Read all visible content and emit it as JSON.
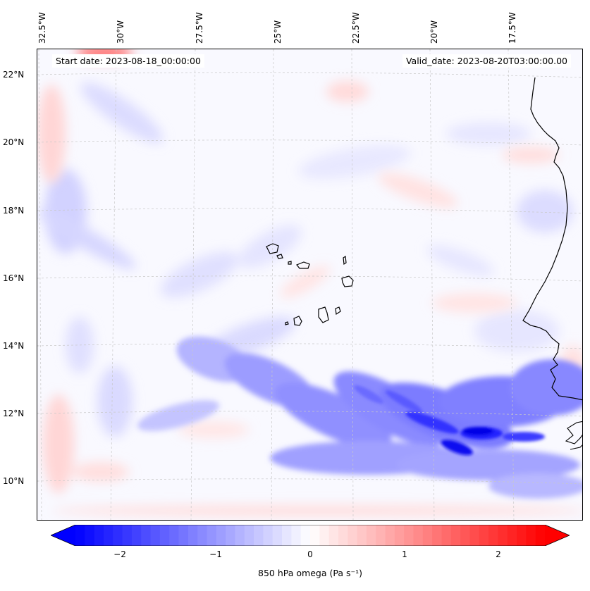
{
  "map": {
    "projection": "Lambert Conformal",
    "extent": {
      "lon_min": -33.0,
      "lon_max": -15.5,
      "lat_min": 8.8,
      "lat_max": 22.7
    },
    "gridlines": "dashed, light grey",
    "coastline_color": "#000000",
    "longitude_labels": [
      "32.5°W",
      "30°W",
      "27.5°W",
      "25°W",
      "22.5°W",
      "20°W",
      "17.5°W"
    ],
    "latitude_labels": [
      "22°N",
      "20°N",
      "18°N",
      "16°N",
      "14°N",
      "12°N",
      "10°N"
    ],
    "start_date_text": "Start date: 2023-08-18_00:00:00",
    "valid_date_text": "Valid_date: 2023-08-20T03:00:00.00",
    "field": "850 hPa omega",
    "features": [
      {
        "name": "strong ascent band",
        "sign": "negative",
        "approx_lat": "11–13°N",
        "approx_lon": "25–15.5°W"
      },
      {
        "name": "Cape Verde Islands",
        "approx_lat": "14.8–17.2°N",
        "approx_lon": "25.3–22.6°W"
      },
      {
        "name": "West African coast",
        "approx_lon": "17.5–15.5°W"
      }
    ]
  },
  "colorbar": {
    "colormap": "bwr",
    "min_color": "#0000ff",
    "mid_color": "#ffffff",
    "max_color": "#ff0000",
    "range": [
      -2.5,
      2.5
    ],
    "extend": "both",
    "ticks": [
      "−2",
      "−1",
      "0",
      "1",
      "2"
    ],
    "label": "850 hPa omega (Pa s⁻¹)"
  }
}
